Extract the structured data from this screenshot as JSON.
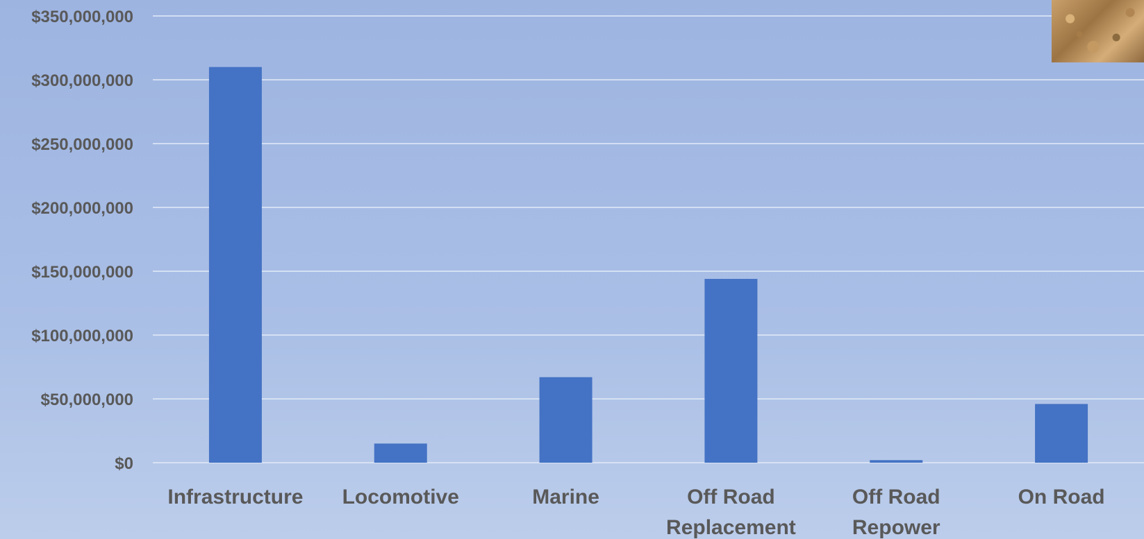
{
  "chart_data": {
    "type": "bar",
    "title": "",
    "xlabel": "",
    "ylabel": "",
    "categories": [
      [
        "Infrastructure"
      ],
      [
        "Locomotive"
      ],
      [
        "Marine"
      ],
      [
        "Off Road",
        "Replacement"
      ],
      [
        "Off Road",
        "Repower"
      ],
      [
        "On Road"
      ]
    ],
    "values": [
      310000000,
      15000000,
      67000000,
      144000000,
      2000000,
      46000000
    ],
    "ylim": [
      0,
      350000000
    ],
    "yticks": [
      "$0",
      "$50,000,000",
      "$100,000,000",
      "$150,000,000",
      "$200,000,000",
      "$250,000,000",
      "$300,000,000",
      "$350,000,000"
    ],
    "ytick_values": [
      0,
      50000000,
      100000000,
      150000000,
      200000000,
      250000000,
      300000000,
      350000000
    ],
    "grid": true,
    "legend": "none",
    "bar_color": "#4472c4"
  }
}
